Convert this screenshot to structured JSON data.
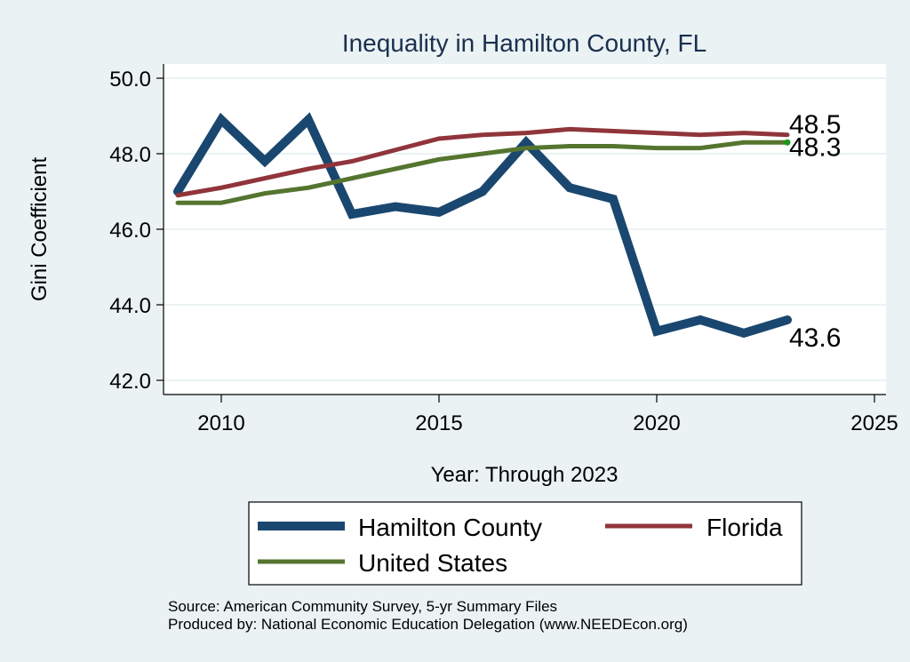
{
  "chart_data": {
    "type": "line",
    "title": "Inequality in Hamilton County, FL",
    "xlabel": "Year: Through 2023",
    "ylabel": "Gini Coefficient",
    "xlim": [
      2008.25,
      2025.3
    ],
    "ylim": [
      41.6,
      50.4
    ],
    "xticks": [
      2010,
      2015,
      2020,
      2025
    ],
    "yticks": [
      42.0,
      44.0,
      46.0,
      48.0,
      50.0
    ],
    "ytick_labels": [
      "42.0",
      "44.0",
      "46.0",
      "48.0",
      "50.0"
    ],
    "xtick_labels": [
      "2010",
      "2015",
      "2020",
      "2025"
    ],
    "grid": "horizontal",
    "legend_placement": "bottom",
    "x": [
      2009,
      2010,
      2011,
      2012,
      2013,
      2014,
      2015,
      2016,
      2017,
      2018,
      2019,
      2020,
      2021,
      2022,
      2023
    ],
    "series": [
      {
        "name": "Hamilton County",
        "color": "#1a476f",
        "values": [
          47.0,
          48.9,
          47.8,
          48.9,
          46.4,
          46.6,
          46.45,
          47.0,
          48.3,
          47.1,
          46.8,
          43.3,
          43.6,
          43.25,
          43.6
        ],
        "end_label": "43.6"
      },
      {
        "name": "Florida",
        "color": "#90353b",
        "values": [
          46.9,
          47.1,
          47.35,
          47.6,
          47.8,
          48.1,
          48.4,
          48.5,
          48.55,
          48.65,
          48.6,
          48.55,
          48.5,
          48.55,
          48.5
        ],
        "end_label": "48.5"
      },
      {
        "name": "United States",
        "color": "#55752f",
        "values": [
          46.7,
          46.7,
          46.95,
          47.1,
          47.35,
          47.6,
          47.85,
          48.0,
          48.15,
          48.2,
          48.2,
          48.15,
          48.15,
          48.3,
          48.3
        ],
        "end_label": "48.3"
      }
    ],
    "source_note": "Source: American Community Survey, 5-yr Summary Files",
    "producer_note": "Produced by: National Economic Education Delegation (www.NEEDEcon.org)"
  }
}
